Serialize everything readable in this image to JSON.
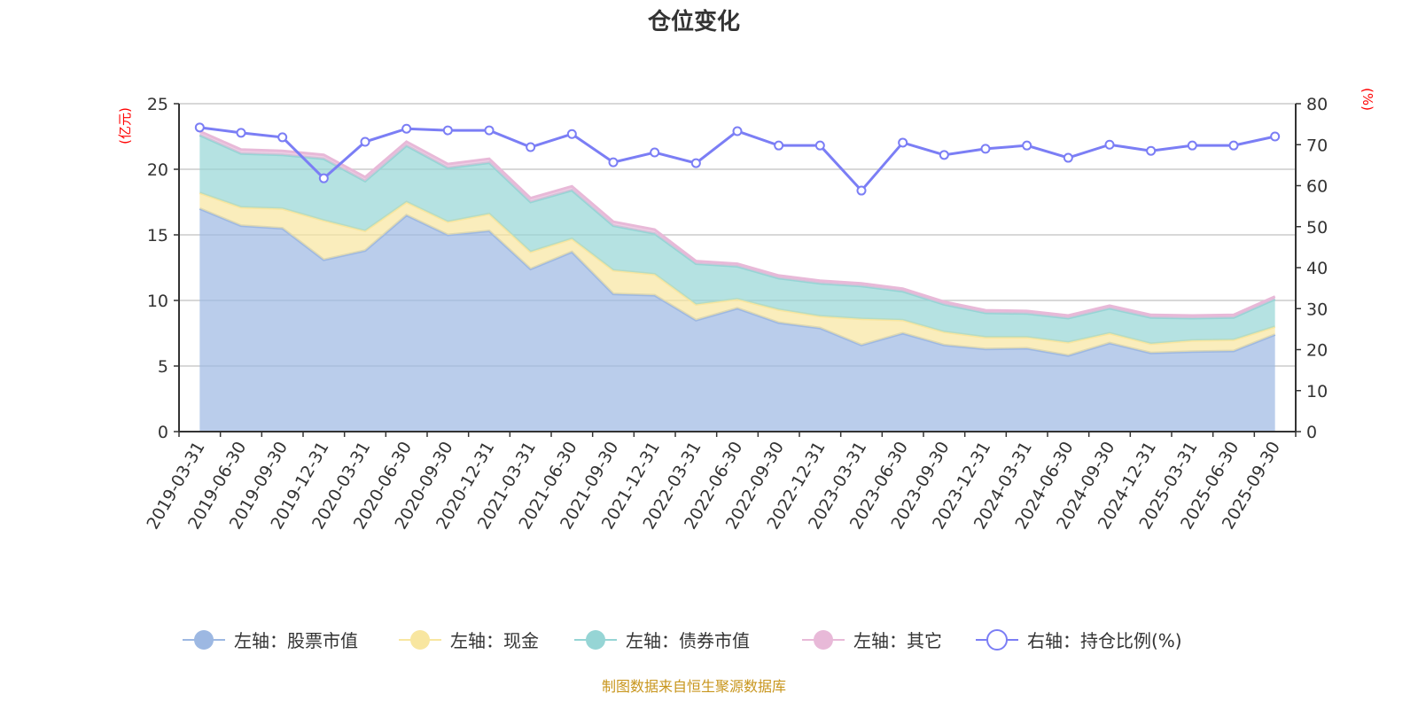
{
  "chart_data": {
    "type": "area",
    "title": "仓位变化",
    "left_axis": {
      "name": "(亿元)",
      "range": [
        0,
        25
      ],
      "ticks": [
        0,
        5,
        10,
        15,
        20,
        25
      ]
    },
    "right_axis": {
      "name": "(%)",
      "range": [
        0,
        80
      ],
      "ticks": [
        0,
        10,
        20,
        30,
        40,
        50,
        60,
        70,
        80
      ]
    },
    "grid": true,
    "legend_placement": "bottom",
    "categories": [
      "2019-03-31",
      "2019-06-30",
      "2019-09-30",
      "2019-12-31",
      "2020-03-31",
      "2020-06-30",
      "2020-09-30",
      "2020-12-31",
      "2021-03-31",
      "2021-06-30",
      "2021-09-30",
      "2021-12-31",
      "2022-03-31",
      "2022-06-30",
      "2022-09-30",
      "2022-12-31",
      "2023-03-31",
      "2023-06-30",
      "2023-09-30",
      "2023-12-31",
      "2024-03-31",
      "2024-06-30",
      "2024-09-30",
      "2024-12-31",
      "2025-03-31",
      "2025-06-30",
      "2025-09-30"
    ],
    "series": [
      {
        "name": "左轴：股票市值",
        "axis": "left",
        "stacked": true,
        "color": "#9db8e2",
        "values": [
          17.0,
          15.7,
          15.5,
          13.1,
          13.8,
          16.5,
          15.0,
          15.3,
          12.4,
          13.7,
          10.5,
          10.4,
          8.5,
          9.4,
          8.3,
          7.9,
          6.6,
          7.5,
          6.6,
          6.3,
          6.35,
          5.8,
          6.75,
          6.0,
          6.1,
          6.15,
          7.4
        ]
      },
      {
        "name": "左轴：现金",
        "axis": "left",
        "stacked": true,
        "color": "#f8e6a0",
        "values": [
          1.2,
          1.4,
          1.5,
          3.0,
          1.5,
          1.0,
          1.0,
          1.3,
          1.3,
          1.0,
          1.8,
          1.6,
          1.2,
          0.7,
          1.0,
          0.9,
          2.0,
          1.0,
          1.0,
          0.9,
          0.85,
          1.0,
          0.75,
          0.7,
          0.85,
          0.85,
          0.6
        ]
      },
      {
        "name": "左轴：债券市值",
        "axis": "left",
        "stacked": true,
        "color": "#96d5d5",
        "values": [
          4.4,
          4.1,
          4.1,
          4.7,
          3.8,
          4.3,
          4.1,
          3.9,
          3.8,
          3.7,
          3.4,
          3.1,
          3.1,
          2.5,
          2.4,
          2.5,
          2.5,
          2.2,
          2.1,
          1.85,
          1.8,
          1.85,
          1.9,
          2.0,
          1.7,
          1.7,
          2.1
        ]
      },
      {
        "name": "左轴：其它",
        "axis": "left",
        "stacked": true,
        "color": "#e8b9d8",
        "values": [
          0.3,
          0.3,
          0.3,
          0.3,
          0.3,
          0.3,
          0.3,
          0.3,
          0.3,
          0.3,
          0.3,
          0.3,
          0.2,
          0.2,
          0.2,
          0.2,
          0.2,
          0.2,
          0.2,
          0.2,
          0.2,
          0.2,
          0.2,
          0.2,
          0.2,
          0.2,
          0.2
        ]
      },
      {
        "name": "右轴：持仓比例(%)",
        "axis": "right",
        "type": "line",
        "color": "#7b7ef5",
        "values": [
          74.2,
          72.9,
          71.8,
          61.8,
          70.7,
          73.9,
          73.5,
          73.5,
          69.4,
          72.6,
          65.7,
          68.1,
          65.5,
          73.3,
          69.8,
          69.8,
          58.8,
          70.5,
          67.5,
          69.0,
          69.8,
          66.8,
          70.0,
          68.5,
          69.8,
          69.8,
          72.0
        ]
      }
    ]
  },
  "source_note": "制图数据来自恒生聚源数据库"
}
